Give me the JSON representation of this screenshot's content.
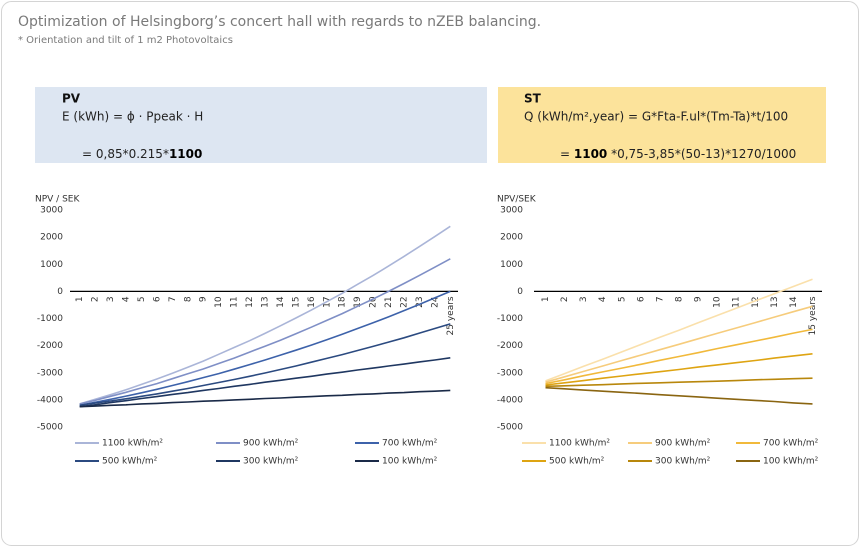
{
  "title": "Optimization of Helsingborg’s concert hall with regards to nZEB balancing.",
  "subtitle": "* Orientation and tilt of 1 m2 Photovoltaics",
  "chart_data": [
    {
      "type": "line",
      "label": "PV",
      "formula": "E (kWh) = ϕ · Ppeak · H",
      "calculation": [
        {
          "text": "= 0,85*0.215*"
        },
        {
          "text": "1100",
          "bold": true
        }
      ],
      "box_color": "#dde6f2",
      "y_label": "NPV / SEK",
      "categories": [
        1,
        2,
        3,
        4,
        5,
        6,
        7,
        8,
        9,
        10,
        11,
        12,
        13,
        14,
        15,
        16,
        17,
        18,
        19,
        20,
        21,
        22,
        23,
        24,
        "25 years"
      ],
      "ylim": [
        -5000,
        3000
      ],
      "yticks": [
        3000,
        2000,
        1000,
        0,
        -1000,
        -2000,
        -3000,
        -4000,
        -5000
      ],
      "series": [
        {
          "name": "1100 kWh/m²",
          "color": "#aab5d8",
          "values": [
            -4150,
            -3980,
            -3810,
            -3630,
            -3430,
            -3230,
            -3020,
            -2800,
            -2570,
            -2320,
            -2070,
            -1820,
            -1550,
            -1270,
            -980,
            -690,
            -380,
            -70,
            260,
            590,
            930,
            1290,
            1650,
            2020,
            2400
          ]
        },
        {
          "name": "900 kWh/m²",
          "color": "#7f8fc6",
          "values": [
            -4150,
            -4020,
            -3870,
            -3720,
            -3560,
            -3400,
            -3220,
            -3040,
            -2860,
            -2660,
            -2460,
            -2240,
            -2020,
            -1800,
            -1560,
            -1320,
            -1070,
            -820,
            -550,
            -280,
            0,
            290,
            590,
            890,
            1200
          ]
        },
        {
          "name": "700 kWh/m²",
          "color": "#3d62aa",
          "values": [
            -4200,
            -4090,
            -3980,
            -3860,
            -3740,
            -3610,
            -3470,
            -3330,
            -3180,
            -3030,
            -2870,
            -2700,
            -2530,
            -2350,
            -2170,
            -1980,
            -1780,
            -1580,
            -1370,
            -1160,
            -940,
            -710,
            -480,
            -240,
            0
          ]
        },
        {
          "name": "500 kWh/m²",
          "color": "#2b4a80",
          "values": [
            -4200,
            -4120,
            -4040,
            -3960,
            -3870,
            -3780,
            -3680,
            -3580,
            -3470,
            -3360,
            -3250,
            -3130,
            -3010,
            -2880,
            -2750,
            -2610,
            -2470,
            -2330,
            -2180,
            -2030,
            -1870,
            -1710,
            -1540,
            -1370,
            -1200
          ]
        },
        {
          "name": "300 kWh/m²",
          "color": "#1f3761",
          "values": [
            -4250,
            -4180,
            -4100,
            -4030,
            -3950,
            -3880,
            -3800,
            -3730,
            -3650,
            -3580,
            -3500,
            -3430,
            -3350,
            -3280,
            -3200,
            -3130,
            -3050,
            -2980,
            -2900,
            -2830,
            -2750,
            -2680,
            -2600,
            -2530,
            -2450
          ]
        },
        {
          "name": "100 kWh/m²",
          "color": "#1a2a48",
          "values": [
            -4250,
            -4230,
            -4200,
            -4180,
            -4150,
            -4130,
            -4100,
            -4080,
            -4050,
            -4030,
            -4000,
            -3980,
            -3950,
            -3930,
            -3900,
            -3880,
            -3850,
            -3830,
            -3800,
            -3780,
            -3750,
            -3730,
            -3700,
            -3680,
            -3650
          ]
        }
      ]
    },
    {
      "type": "line",
      "label": "ST",
      "formula": "Q (kWh/m²,year) = G*Fta-F.ul*(Tm-Ta)*t/100",
      "calculation": [
        {
          "text": "= "
        },
        {
          "text": "1100",
          "bold": true
        },
        {
          "text": " *0,75-3,85*(50-13)*1270/1000"
        }
      ],
      "box_color": "#fce39b",
      "y_label": "NPV/SEK",
      "categories": [
        1,
        2,
        3,
        4,
        5,
        6,
        7,
        8,
        9,
        10,
        11,
        12,
        13,
        14,
        "15 years"
      ],
      "ylim": [
        -5000,
        3000
      ],
      "yticks": [
        3000,
        2000,
        1000,
        0,
        -1000,
        -2000,
        -3000,
        -4000,
        -5000
      ],
      "series": [
        {
          "name": "1100 kWh/m²",
          "color": "#fae0ab",
          "values": [
            -3300,
            -3030,
            -2760,
            -2500,
            -2230,
            -1960,
            -1690,
            -1430,
            -1160,
            -890,
            -620,
            -350,
            -90,
            180,
            450
          ]
        },
        {
          "name": "900 kWh/m²",
          "color": "#f6cc7c",
          "values": [
            -3350,
            -3150,
            -2950,
            -2750,
            -2550,
            -2350,
            -2150,
            -1950,
            -1750,
            -1550,
            -1350,
            -1150,
            -950,
            -750,
            -550
          ]
        },
        {
          "name": "700 kWh/m²",
          "color": "#f1b93b",
          "values": [
            -3400,
            -3260,
            -3110,
            -2970,
            -2830,
            -2690,
            -2540,
            -2400,
            -2260,
            -2110,
            -1970,
            -1830,
            -1690,
            -1540,
            -1400
          ]
        },
        {
          "name": "500 kWh/m²",
          "color": "#dea412",
          "values": [
            -3450,
            -3370,
            -3290,
            -3200,
            -3120,
            -3040,
            -2960,
            -2880,
            -2790,
            -2710,
            -2630,
            -2550,
            -2460,
            -2380,
            -2300
          ]
        },
        {
          "name": "300 kWh/m²",
          "color": "#b8870c",
          "values": [
            -3500,
            -3480,
            -3460,
            -3440,
            -3410,
            -3390,
            -3370,
            -3350,
            -3330,
            -3310,
            -3290,
            -3260,
            -3240,
            -3220,
            -3200
          ]
        },
        {
          "name": "100 kWh/m²",
          "color": "#8a6511",
          "values": [
            -3550,
            -3590,
            -3640,
            -3680,
            -3720,
            -3760,
            -3810,
            -3850,
            -3890,
            -3940,
            -3980,
            -4020,
            -4060,
            -4110,
            -4150
          ]
        }
      ]
    }
  ]
}
